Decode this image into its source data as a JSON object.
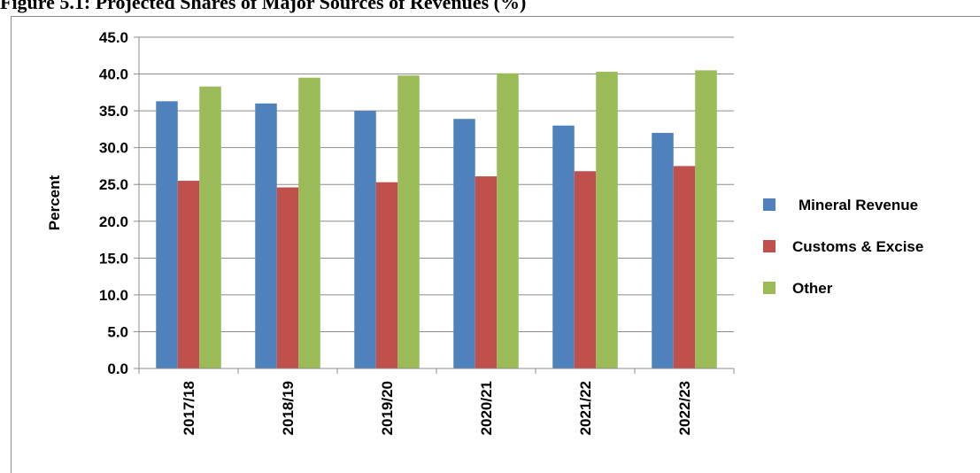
{
  "figure_title": "Figure 5.1: Projected Shares of Major Sources of Revenues (%)",
  "chart_data": {
    "type": "bar",
    "ylabel": "Percent",
    "xlabel": "",
    "ylim": [
      0,
      45
    ],
    "ytick_step": 5,
    "ytick_labels": [
      "0.0",
      "5.0",
      "10.0",
      "15.0",
      "20.0",
      "25.0",
      "30.0",
      "35.0",
      "40.0",
      "45.0"
    ],
    "grid": true,
    "legend_position": "right",
    "categories": [
      "2017/18",
      "2018/19",
      "2019/20",
      "2020/21",
      "2021/22",
      "2022/23"
    ],
    "series": [
      {
        "name": "Mineral Revenue",
        "color": "#4f81bd",
        "values": [
          36.3,
          36.0,
          35.0,
          33.9,
          33.0,
          32.0
        ]
      },
      {
        "name": "Customs & Excise",
        "color": "#c0504d",
        "values": [
          25.5,
          24.6,
          25.3,
          26.1,
          26.8,
          27.5
        ]
      },
      {
        "name": "Other",
        "color": "#9bbb59",
        "values": [
          38.3,
          39.5,
          39.8,
          40.1,
          40.3,
          40.5
        ]
      }
    ]
  }
}
